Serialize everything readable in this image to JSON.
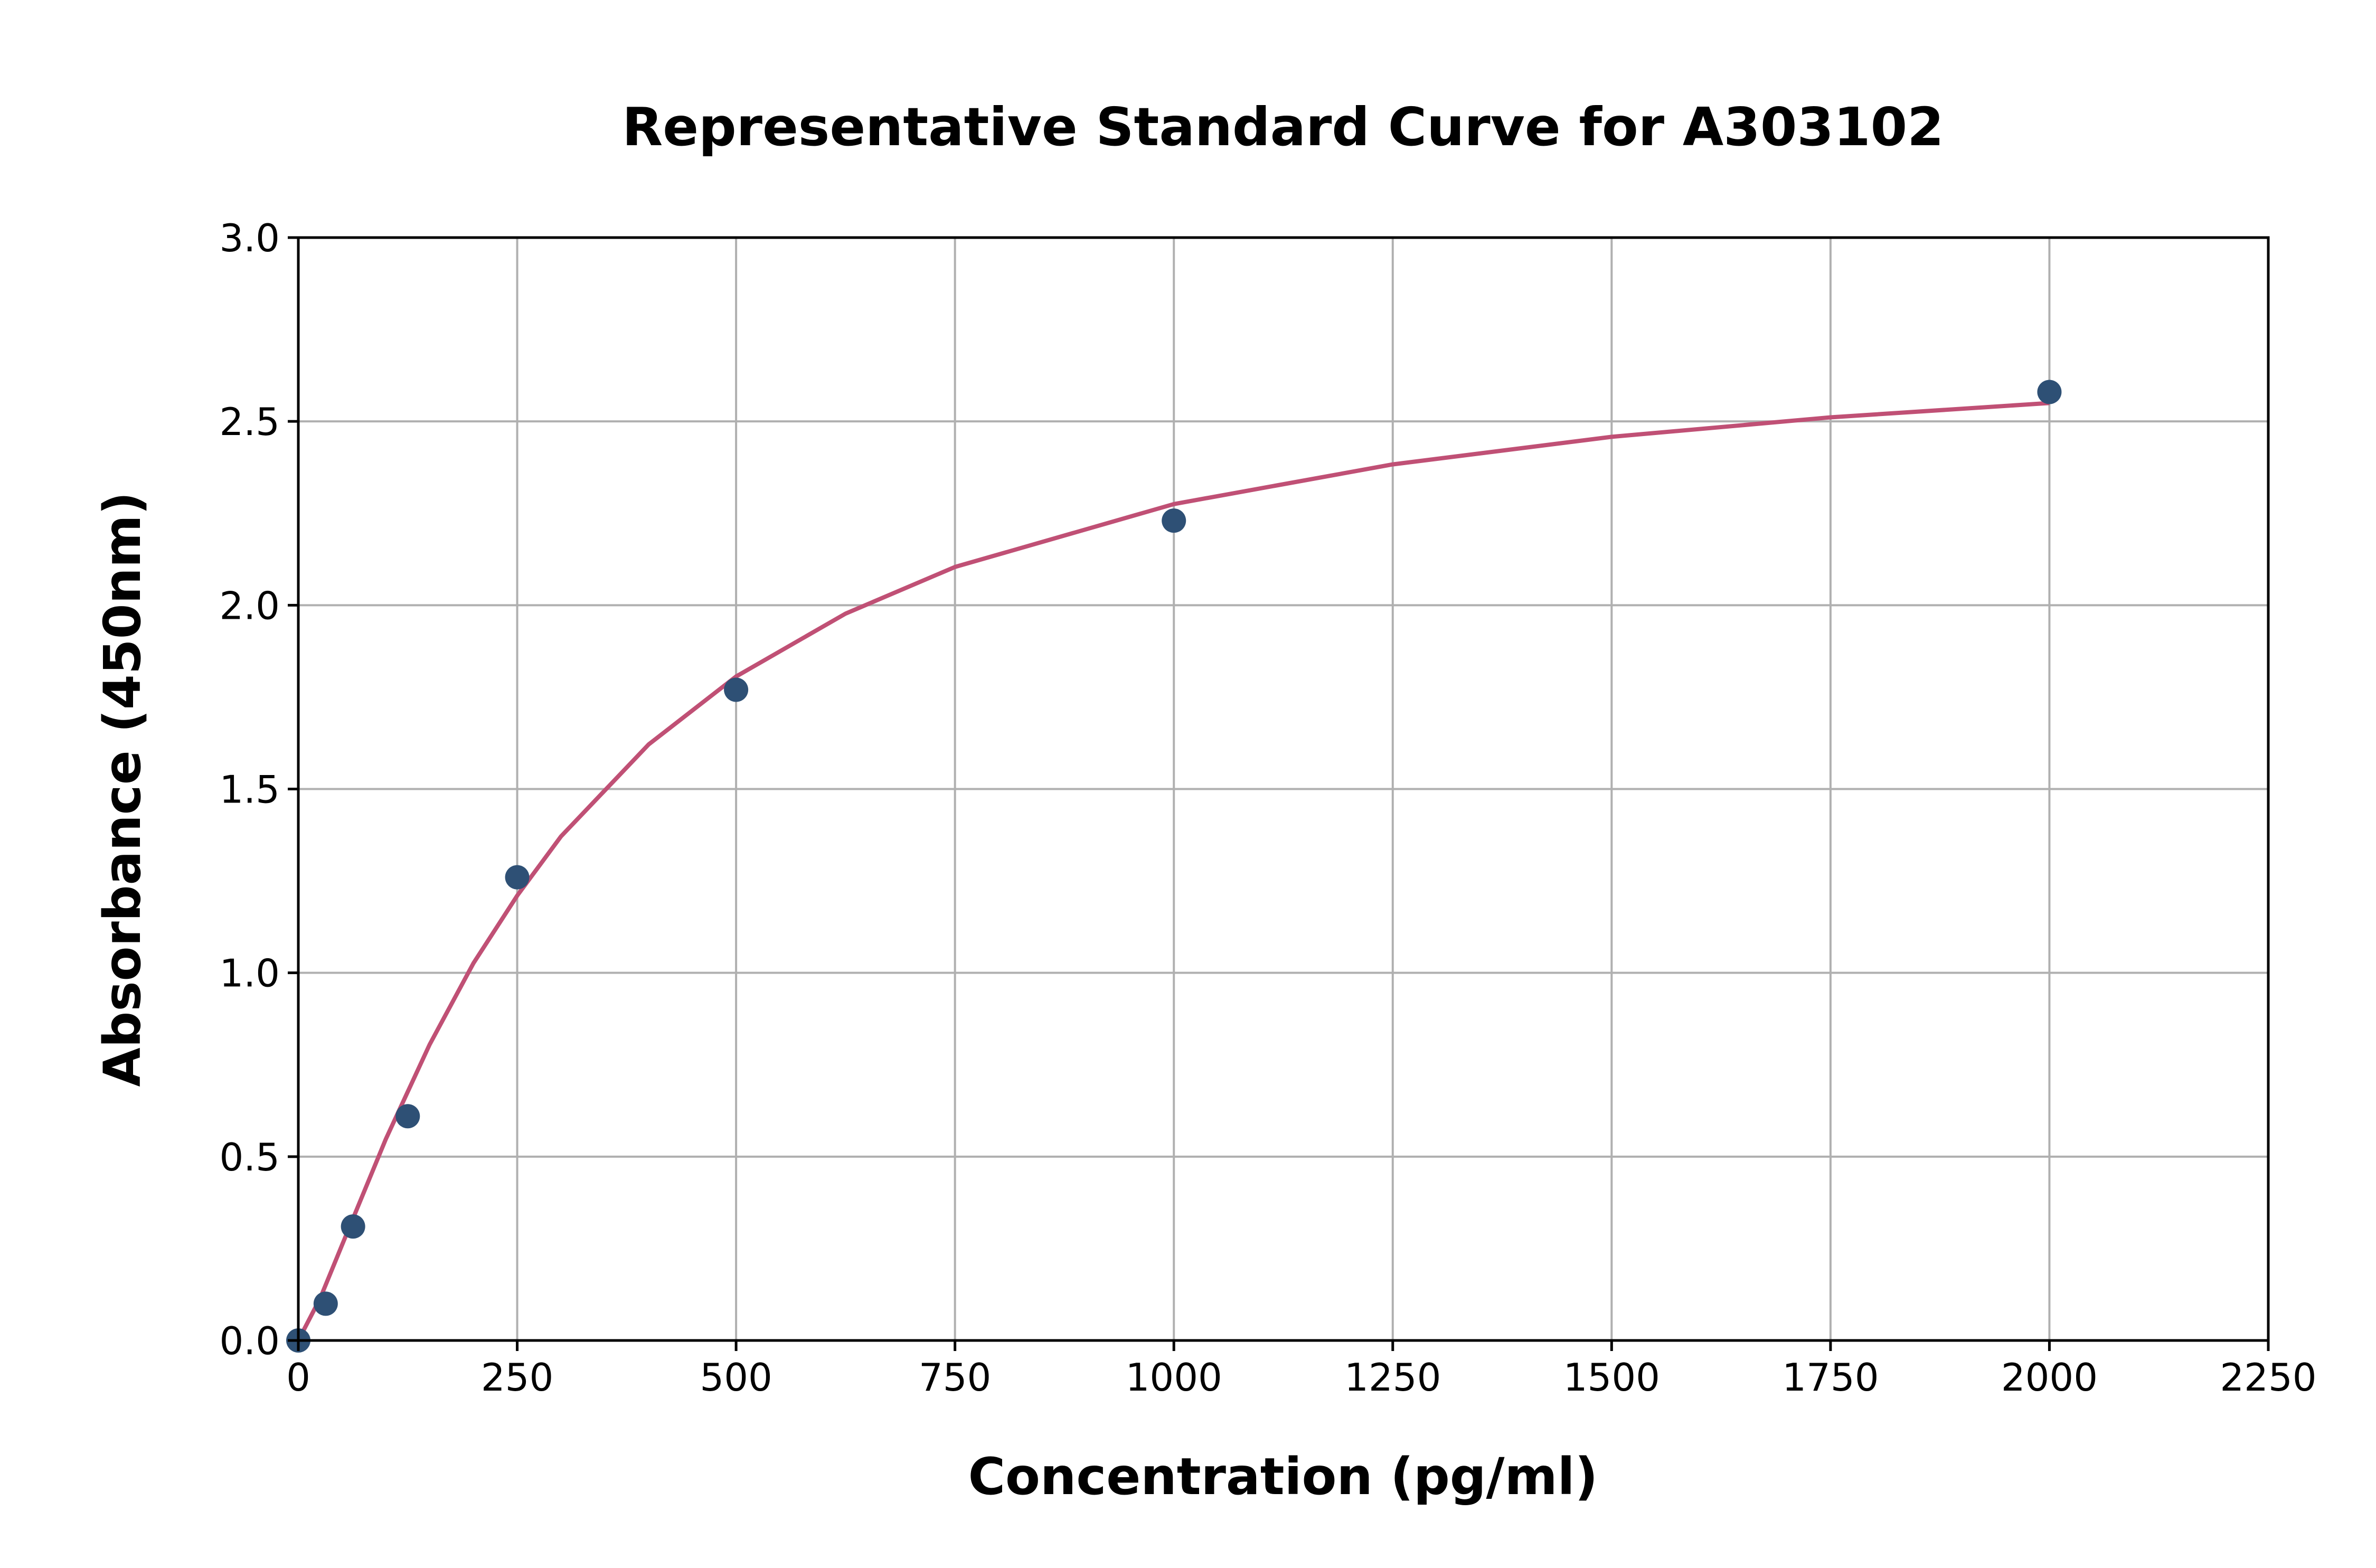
{
  "chart_data": {
    "type": "scatter",
    "title": "Representative Standard Curve for A303102",
    "xlabel": "Concentration (pg/ml)",
    "ylabel": "Absorbance (450nm)",
    "xlim": [
      0,
      2250
    ],
    "ylim": [
      0,
      3.0
    ],
    "xticks": [
      0,
      250,
      500,
      750,
      1000,
      1250,
      1500,
      1750,
      2000,
      2250
    ],
    "xtick_labels": [
      "0",
      "250",
      "500",
      "750",
      "1000",
      "1250",
      "1500",
      "1750",
      "2000",
      "2250"
    ],
    "yticks": [
      0,
      0.5,
      1.0,
      1.5,
      2.0,
      2.5,
      3.0
    ],
    "ytick_labels": [
      "0.0",
      "0.5",
      "1.0",
      "1.5",
      "2.0",
      "2.5",
      "3.0"
    ],
    "grid": true,
    "points": {
      "x": [
        0,
        31.25,
        62.5,
        125,
        250,
        500,
        1000,
        2000
      ],
      "y": [
        0.0,
        0.1,
        0.31,
        0.61,
        1.26,
        1.77,
        2.23,
        2.58
      ],
      "color": "#2e5075"
    },
    "fit_curve": {
      "x": [
        0,
        25,
        50,
        100,
        150,
        200,
        250,
        300,
        400,
        500,
        625,
        750,
        1000,
        1250,
        1500,
        1750,
        2000
      ],
      "y": [
        0,
        0.115,
        0.26,
        0.548,
        0.805,
        1.026,
        1.21,
        1.371,
        1.621,
        1.806,
        1.977,
        2.104,
        2.275,
        2.383,
        2.458,
        2.511,
        2.55
      ],
      "color": "#c05075"
    }
  }
}
